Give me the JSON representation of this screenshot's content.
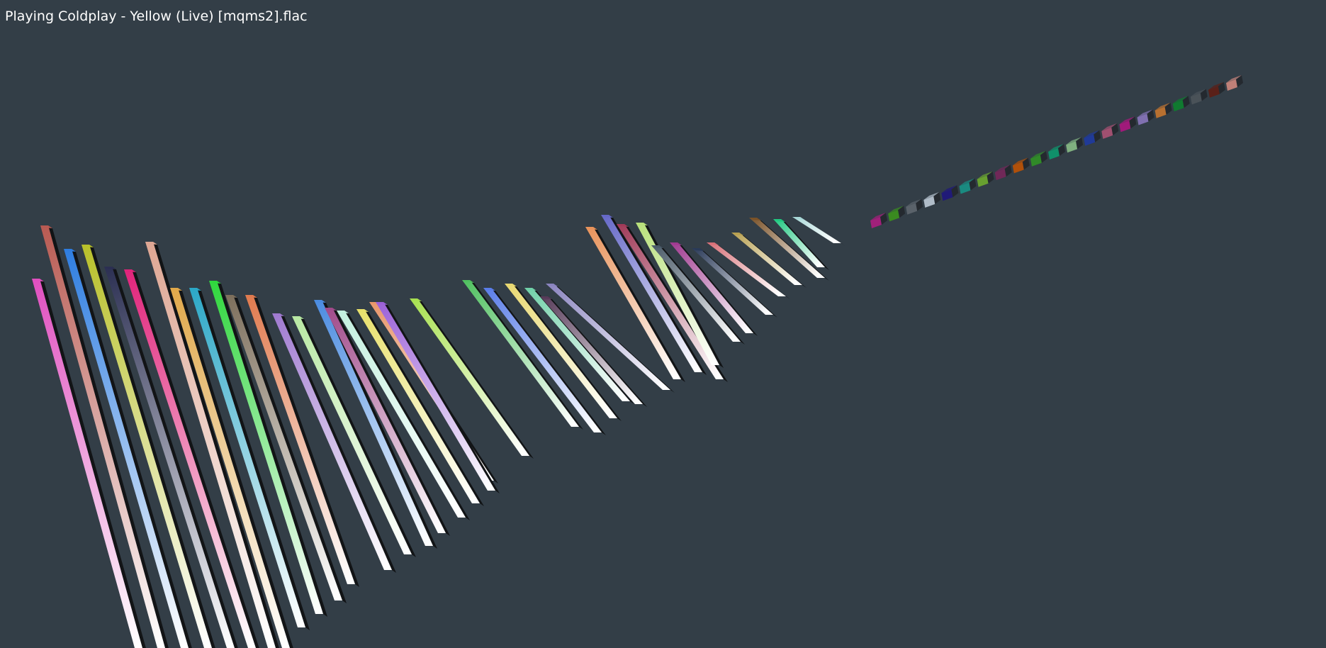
{
  "window": {
    "status_text": "Playing Coldplay - Yellow (Live) [mqms2].flac"
  },
  "visualizer": {
    "background_color": "#333e47",
    "bar_colors": [
      "#e04fbf",
      "#b85a52",
      "#2e7de0",
      "#b8c02a",
      "#2b2f52",
      "#e0237a",
      "#dea693",
      "#e0a84a",
      "#2ba7c6",
      "#2fd63d",
      "#7d6f5c",
      "#e07a4e",
      "#a07ad0",
      "#b8e8a3",
      "#4a8be0",
      "#a04a8a",
      "#c3f0df",
      "#e8e06a",
      "#e8966a",
      "#9b60d8",
      "#a8e050",
      "#50c060",
      "#5a7de8",
      "#e8d870",
      "#70d0a8",
      "#563a58",
      "#8a84c0",
      "#e8925a",
      "#6568c8",
      "#a03a58",
      "#b8e07a",
      "#4a5a68",
      "#a03a90",
      "#2a3a58",
      "#d87078",
      "#b8a050",
      "#7a5228",
      "#20c880",
      "#a8d8d8",
      "#a0207a",
      "#3a8a20",
      "#5a626a",
      "#b0bcc8",
      "#201a78",
      "#1a8a80",
      "#68a030",
      "#702858",
      "#b0500a",
      "#308a28",
      "#10906a",
      "#80b080",
      "#203a98",
      "#a05070",
      "#a01a7a",
      "#8070b0",
      "#b87030",
      "#107a30",
      "#4a5258",
      "#5a2018",
      "#c08078"
    ]
  }
}
